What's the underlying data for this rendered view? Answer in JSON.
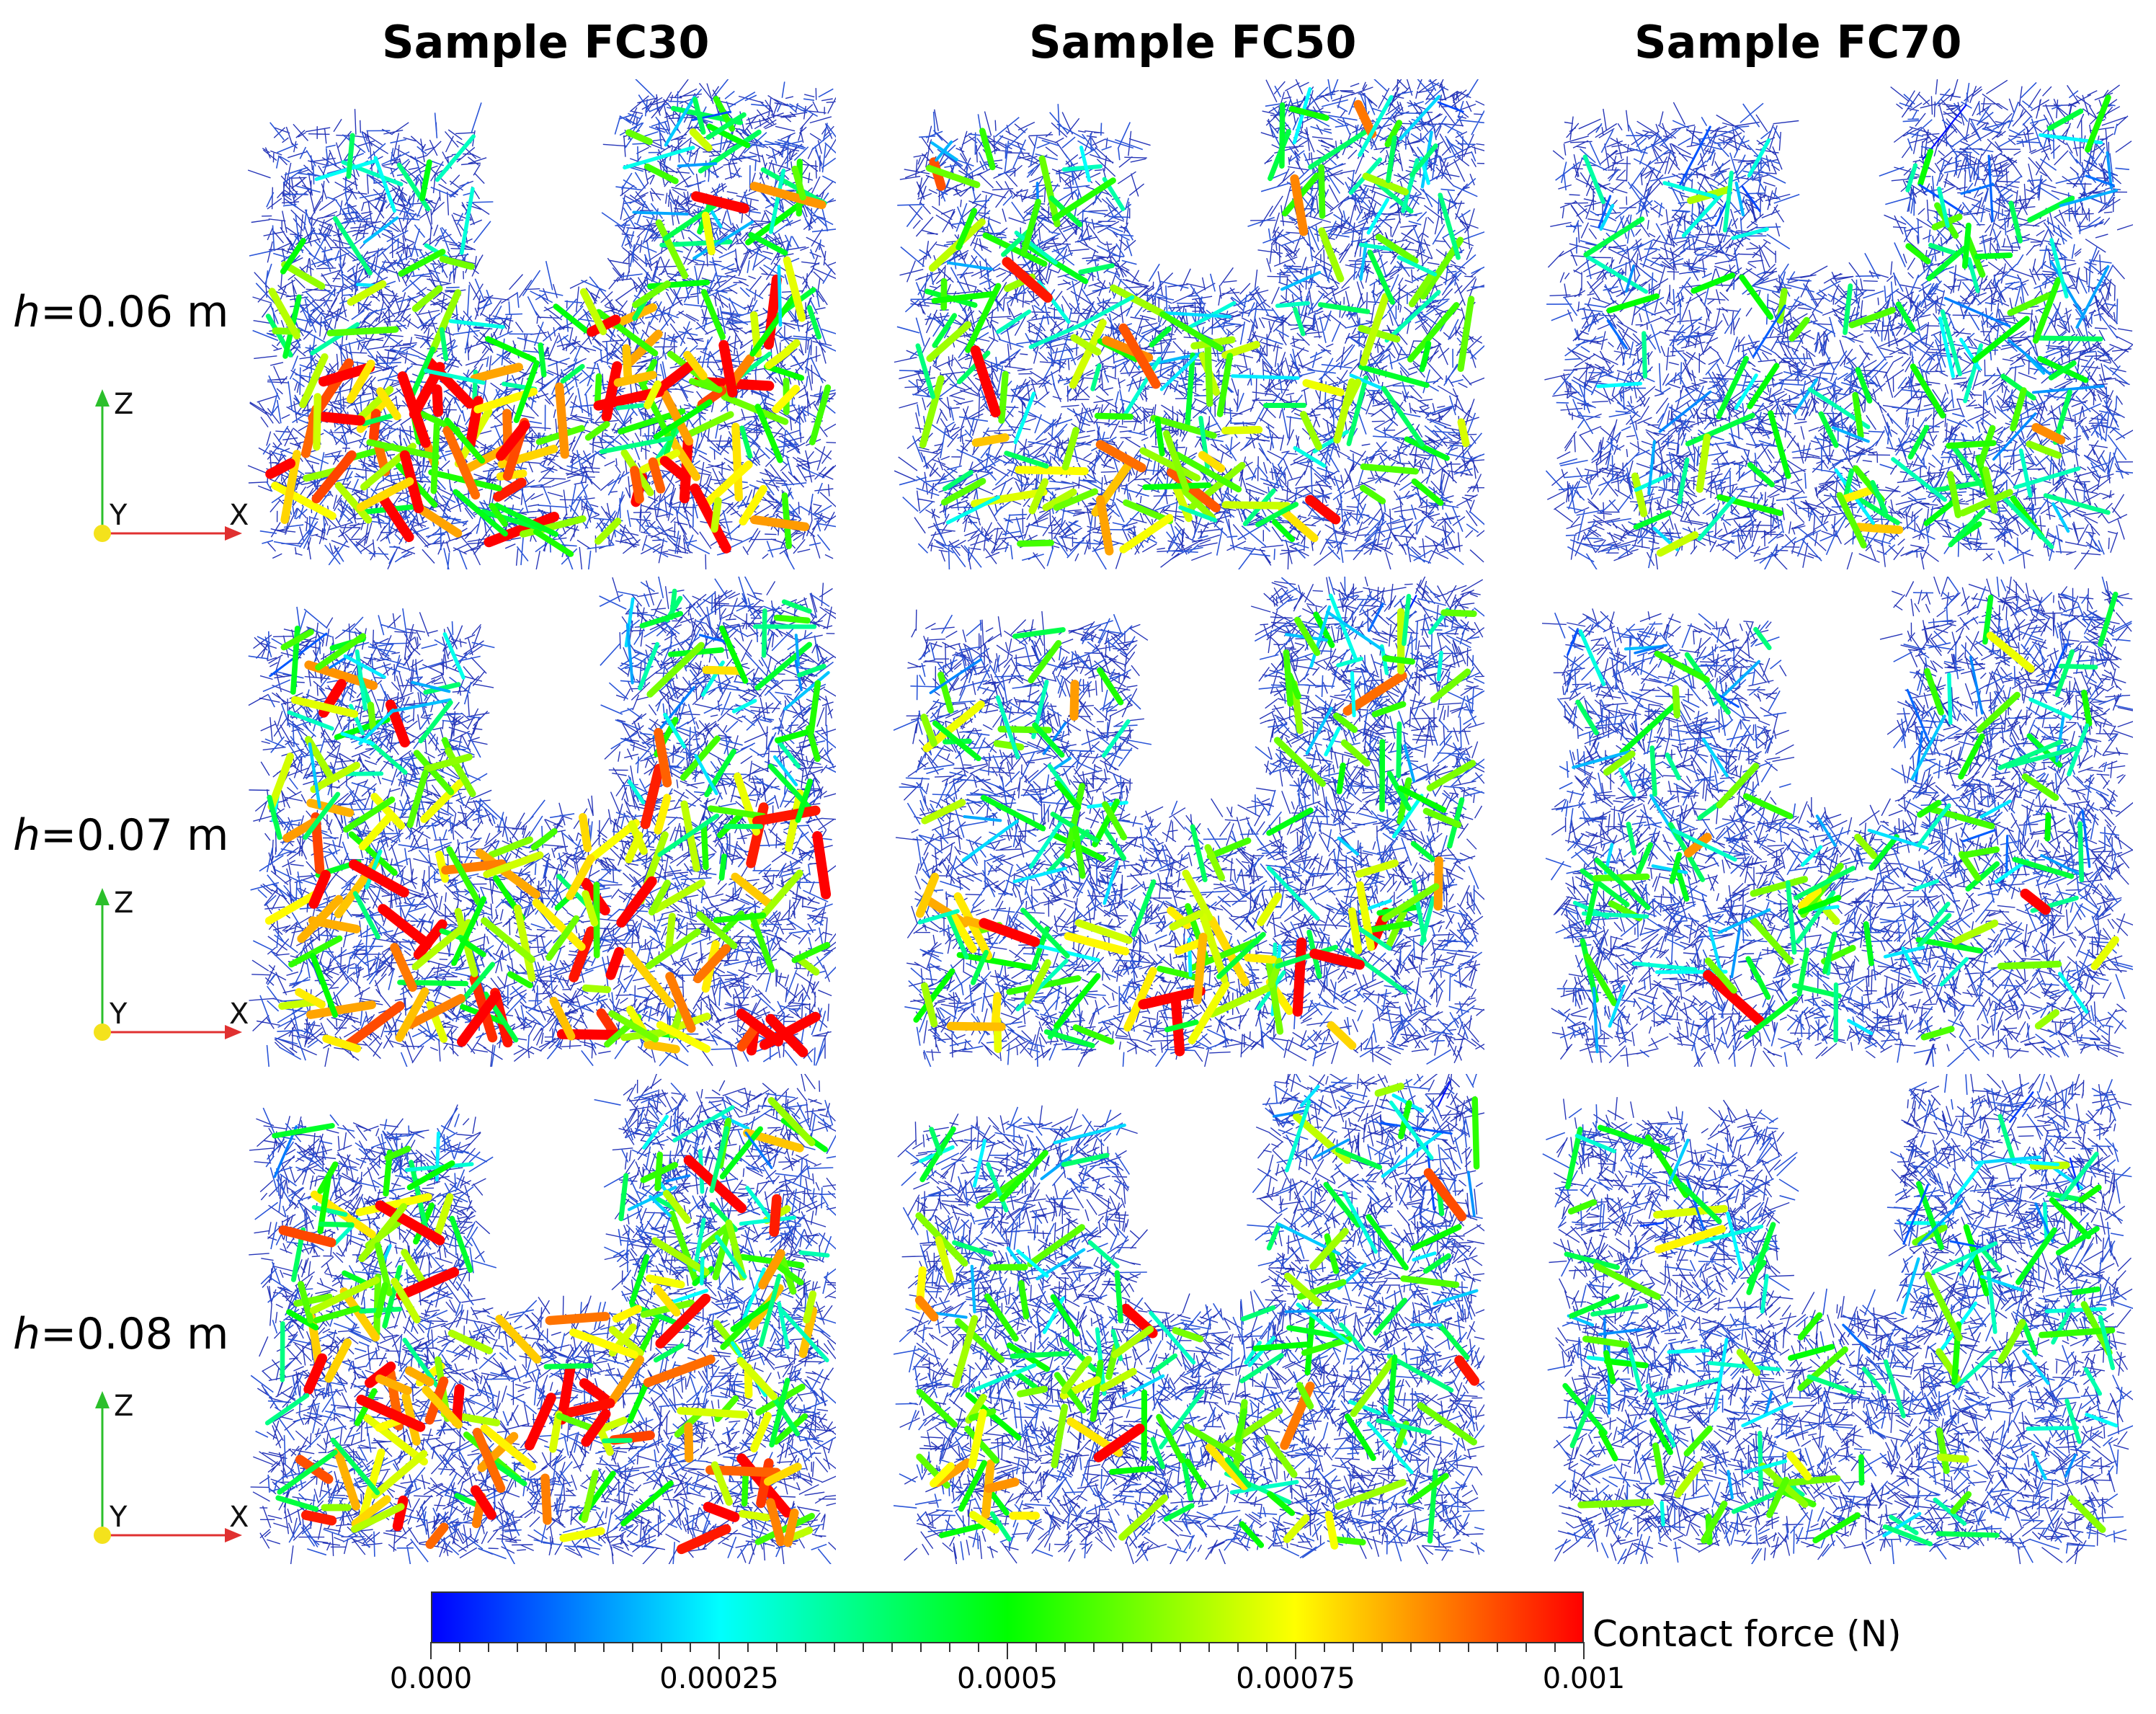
{
  "columns": [
    {
      "title": "Sample FC30"
    },
    {
      "title": "Sample FC50"
    },
    {
      "title": "Sample FC70"
    }
  ],
  "rows": [
    {
      "label_var": "h",
      "label_rest": "=0.06 m"
    },
    {
      "label_var": "h",
      "label_rest": "=0.07 m"
    },
    {
      "label_var": "h",
      "label_rest": "=0.08 m"
    }
  ],
  "axes_triad": {
    "z_label": "Z",
    "y_label": "Y",
    "x_label": "X"
  },
  "colorbar": {
    "title": "Contact force (N)",
    "tick_labels": [
      "0.000",
      "0.00025",
      "0.0005",
      "0.00075",
      "0.001"
    ],
    "min": 0.0,
    "max": 0.001,
    "colors": [
      "#0000ff",
      "#00ffff",
      "#00ff00",
      "#ffff00",
      "#ff0000"
    ]
  },
  "icons": {
    "axis_triad": "xyz-axes-icon"
  }
}
